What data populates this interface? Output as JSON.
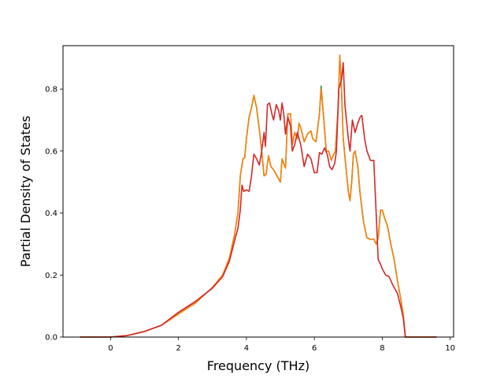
{
  "chart_data": {
    "type": "line",
    "title": "",
    "xlabel": "Frequency (THz)",
    "ylabel": "Partial Density of States",
    "xlim": [
      -1.4,
      10.1
    ],
    "ylim": [
      0.0,
      0.94
    ],
    "xticks": [
      0,
      2,
      4,
      6,
      8,
      10
    ],
    "yticks": [
      0.0,
      0.2,
      0.4,
      0.6,
      0.8
    ],
    "xtick_labels": [
      "0",
      "2",
      "4",
      "6",
      "8",
      "10"
    ],
    "ytick_labels": [
      "0.0",
      "0.2",
      "0.4",
      "0.6",
      "0.8"
    ],
    "grid": false,
    "legend": "none",
    "series": [
      {
        "color": "#2ca02c",
        "points": [
          [
            -0.9,
            0.0
          ],
          [
            0.0,
            0.0
          ],
          [
            0.5,
            0.005
          ],
          [
            1.0,
            0.018
          ],
          [
            1.5,
            0.038
          ],
          [
            2.0,
            0.075
          ],
          [
            2.5,
            0.11
          ],
          [
            3.0,
            0.16
          ],
          [
            3.3,
            0.2
          ],
          [
            3.5,
            0.255
          ],
          [
            3.65,
            0.33
          ],
          [
            3.75,
            0.4
          ],
          [
            3.82,
            0.52
          ],
          [
            3.9,
            0.575
          ],
          [
            3.95,
            0.578
          ],
          [
            4.0,
            0.64
          ],
          [
            4.08,
            0.71
          ],
          [
            4.15,
            0.74
          ],
          [
            4.22,
            0.778
          ],
          [
            4.3,
            0.74
          ],
          [
            4.38,
            0.67
          ],
          [
            4.45,
            0.6
          ],
          [
            4.52,
            0.52
          ],
          [
            4.58,
            0.525
          ],
          [
            4.65,
            0.585
          ],
          [
            4.72,
            0.55
          ],
          [
            4.8,
            0.54
          ],
          [
            4.9,
            0.52
          ],
          [
            5.0,
            0.5
          ],
          [
            5.05,
            0.575
          ],
          [
            5.1,
            0.56
          ],
          [
            5.15,
            0.545
          ],
          [
            5.22,
            0.72
          ],
          [
            5.3,
            0.72
          ],
          [
            5.35,
            0.62
          ],
          [
            5.42,
            0.66
          ],
          [
            5.5,
            0.64
          ],
          [
            5.55,
            0.69
          ],
          [
            5.6,
            0.675
          ],
          [
            5.7,
            0.63
          ],
          [
            5.8,
            0.655
          ],
          [
            5.9,
            0.665
          ],
          [
            5.95,
            0.64
          ],
          [
            6.05,
            0.63
          ],
          [
            6.15,
            0.72
          ],
          [
            6.2,
            0.81
          ],
          [
            6.28,
            0.7
          ],
          [
            6.35,
            0.6
          ],
          [
            6.42,
            0.6
          ],
          [
            6.5,
            0.57
          ],
          [
            6.55,
            0.585
          ],
          [
            6.62,
            0.6
          ],
          [
            6.7,
            0.74
          ],
          [
            6.75,
            0.905
          ],
          [
            6.8,
            0.8
          ],
          [
            6.85,
            0.64
          ],
          [
            6.92,
            0.56
          ],
          [
            7.0,
            0.47
          ],
          [
            7.05,
            0.44
          ],
          [
            7.1,
            0.5
          ],
          [
            7.15,
            0.59
          ],
          [
            7.2,
            0.6
          ],
          [
            7.28,
            0.55
          ],
          [
            7.35,
            0.46
          ],
          [
            7.45,
            0.37
          ],
          [
            7.55,
            0.32
          ],
          [
            7.65,
            0.315
          ],
          [
            7.75,
            0.316
          ],
          [
            7.82,
            0.3
          ],
          [
            7.88,
            0.32
          ],
          [
            7.95,
            0.41
          ],
          [
            8.0,
            0.41
          ],
          [
            8.08,
            0.38
          ],
          [
            8.15,
            0.36
          ],
          [
            8.25,
            0.3
          ],
          [
            8.35,
            0.25
          ],
          [
            8.45,
            0.18
          ],
          [
            8.55,
            0.12
          ],
          [
            8.62,
            0.07
          ],
          [
            8.68,
            0.0
          ],
          [
            9.6,
            0.0
          ]
        ]
      },
      {
        "color": "#ff7f0e",
        "points": [
          [
            -0.9,
            0.0
          ],
          [
            0.0,
            0.0
          ],
          [
            0.5,
            0.005
          ],
          [
            1.0,
            0.018
          ],
          [
            1.5,
            0.038
          ],
          [
            2.0,
            0.074
          ],
          [
            2.5,
            0.11
          ],
          [
            3.0,
            0.16
          ],
          [
            3.3,
            0.2
          ],
          [
            3.5,
            0.255
          ],
          [
            3.65,
            0.33
          ],
          [
            3.75,
            0.4
          ],
          [
            3.82,
            0.52
          ],
          [
            3.9,
            0.575
          ],
          [
            3.95,
            0.578
          ],
          [
            4.0,
            0.64
          ],
          [
            4.08,
            0.71
          ],
          [
            4.15,
            0.74
          ],
          [
            4.22,
            0.78
          ],
          [
            4.3,
            0.74
          ],
          [
            4.38,
            0.67
          ],
          [
            4.45,
            0.6
          ],
          [
            4.52,
            0.52
          ],
          [
            4.58,
            0.525
          ],
          [
            4.65,
            0.585
          ],
          [
            4.72,
            0.55
          ],
          [
            4.8,
            0.54
          ],
          [
            4.9,
            0.52
          ],
          [
            5.0,
            0.5
          ],
          [
            5.05,
            0.575
          ],
          [
            5.1,
            0.56
          ],
          [
            5.15,
            0.545
          ],
          [
            5.22,
            0.72
          ],
          [
            5.3,
            0.72
          ],
          [
            5.35,
            0.62
          ],
          [
            5.42,
            0.66
          ],
          [
            5.5,
            0.64
          ],
          [
            5.55,
            0.69
          ],
          [
            5.6,
            0.675
          ],
          [
            5.7,
            0.63
          ],
          [
            5.8,
            0.655
          ],
          [
            5.9,
            0.665
          ],
          [
            5.95,
            0.64
          ],
          [
            6.05,
            0.63
          ],
          [
            6.15,
            0.72
          ],
          [
            6.2,
            0.8
          ],
          [
            6.28,
            0.7
          ],
          [
            6.35,
            0.6
          ],
          [
            6.42,
            0.6
          ],
          [
            6.5,
            0.57
          ],
          [
            6.55,
            0.585
          ],
          [
            6.62,
            0.6
          ],
          [
            6.7,
            0.74
          ],
          [
            6.75,
            0.91
          ],
          [
            6.8,
            0.8
          ],
          [
            6.85,
            0.64
          ],
          [
            6.92,
            0.56
          ],
          [
            7.0,
            0.47
          ],
          [
            7.05,
            0.44
          ],
          [
            7.1,
            0.5
          ],
          [
            7.15,
            0.59
          ],
          [
            7.2,
            0.6
          ],
          [
            7.28,
            0.55
          ],
          [
            7.35,
            0.46
          ],
          [
            7.45,
            0.37
          ],
          [
            7.55,
            0.32
          ],
          [
            7.65,
            0.315
          ],
          [
            7.75,
            0.316
          ],
          [
            7.82,
            0.3
          ],
          [
            7.88,
            0.32
          ],
          [
            7.95,
            0.41
          ],
          [
            8.0,
            0.41
          ],
          [
            8.08,
            0.38
          ],
          [
            8.15,
            0.36
          ],
          [
            8.25,
            0.3
          ],
          [
            8.35,
            0.25
          ],
          [
            8.45,
            0.18
          ],
          [
            8.55,
            0.12
          ],
          [
            8.62,
            0.07
          ],
          [
            8.68,
            0.0
          ],
          [
            9.6,
            0.0
          ]
        ]
      },
      {
        "color": "#d62728",
        "points": [
          [
            -0.9,
            0.0
          ],
          [
            0.0,
            0.0
          ],
          [
            0.5,
            0.005
          ],
          [
            1.0,
            0.018
          ],
          [
            1.5,
            0.038
          ],
          [
            2.0,
            0.08
          ],
          [
            2.5,
            0.115
          ],
          [
            3.0,
            0.158
          ],
          [
            3.3,
            0.195
          ],
          [
            3.5,
            0.245
          ],
          [
            3.65,
            0.31
          ],
          [
            3.75,
            0.35
          ],
          [
            3.82,
            0.41
          ],
          [
            3.87,
            0.49
          ],
          [
            3.92,
            0.47
          ],
          [
            4.0,
            0.475
          ],
          [
            4.08,
            0.47
          ],
          [
            4.15,
            0.52
          ],
          [
            4.22,
            0.59
          ],
          [
            4.3,
            0.575
          ],
          [
            4.38,
            0.555
          ],
          [
            4.45,
            0.6
          ],
          [
            4.52,
            0.66
          ],
          [
            4.56,
            0.615
          ],
          [
            4.62,
            0.75
          ],
          [
            4.68,
            0.755
          ],
          [
            4.75,
            0.72
          ],
          [
            4.8,
            0.7
          ],
          [
            4.88,
            0.75
          ],
          [
            4.95,
            0.73
          ],
          [
            5.0,
            0.7
          ],
          [
            5.05,
            0.755
          ],
          [
            5.1,
            0.72
          ],
          [
            5.15,
            0.655
          ],
          [
            5.22,
            0.71
          ],
          [
            5.3,
            0.68
          ],
          [
            5.35,
            0.6
          ],
          [
            5.42,
            0.62
          ],
          [
            5.5,
            0.66
          ],
          [
            5.55,
            0.64
          ],
          [
            5.6,
            0.62
          ],
          [
            5.7,
            0.55
          ],
          [
            5.8,
            0.59
          ],
          [
            5.9,
            0.575
          ],
          [
            6.0,
            0.53
          ],
          [
            6.08,
            0.53
          ],
          [
            6.15,
            0.595
          ],
          [
            6.22,
            0.59
          ],
          [
            6.3,
            0.61
          ],
          [
            6.38,
            0.59
          ],
          [
            6.45,
            0.55
          ],
          [
            6.52,
            0.54
          ],
          [
            6.6,
            0.56
          ],
          [
            6.65,
            0.6
          ],
          [
            6.72,
            0.8
          ],
          [
            6.8,
            0.83
          ],
          [
            6.85,
            0.885
          ],
          [
            6.9,
            0.75
          ],
          [
            7.0,
            0.64
          ],
          [
            7.05,
            0.6
          ],
          [
            7.12,
            0.7
          ],
          [
            7.2,
            0.66
          ],
          [
            7.28,
            0.69
          ],
          [
            7.35,
            0.71
          ],
          [
            7.4,
            0.715
          ],
          [
            7.48,
            0.64
          ],
          [
            7.55,
            0.6
          ],
          [
            7.65,
            0.57
          ],
          [
            7.75,
            0.57
          ],
          [
            7.82,
            0.4
          ],
          [
            7.88,
            0.25
          ],
          [
            7.95,
            0.235
          ],
          [
            8.0,
            0.22
          ],
          [
            8.1,
            0.2
          ],
          [
            8.2,
            0.195
          ],
          [
            8.3,
            0.17
          ],
          [
            8.45,
            0.14
          ],
          [
            8.55,
            0.095
          ],
          [
            8.62,
            0.06
          ],
          [
            8.68,
            0.0
          ],
          [
            9.6,
            0.0
          ]
        ]
      }
    ]
  }
}
